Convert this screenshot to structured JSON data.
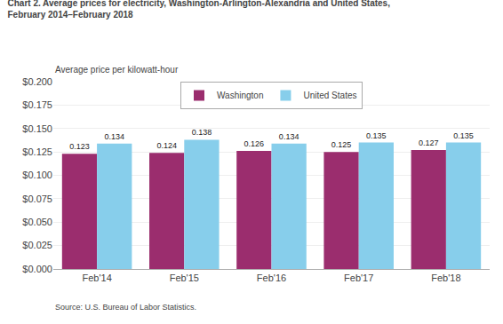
{
  "chart_data": {
    "type": "bar",
    "title": "Chart 2. Average prices for electricity, Washington-Arlington-Alexandria and United States,",
    "subtitle": "February 2014–February 2018",
    "ylabel": "Average price per kilowatt-hour",
    "source": "Source: U.S. Bureau of Labor Statistics.",
    "categories": [
      "Feb'14",
      "Feb'15",
      "Feb'16",
      "Feb'17",
      "Feb'18"
    ],
    "series": [
      {
        "name": "Washington",
        "color": "#9B2D6E",
        "values": [
          0.123,
          0.124,
          0.126,
          0.125,
          0.127
        ]
      },
      {
        "name": "United States",
        "color": "#87CEEB",
        "values": [
          0.134,
          0.138,
          0.134,
          0.135,
          0.135
        ]
      }
    ],
    "ylim": [
      0,
      0.2
    ],
    "yticks": [
      {
        "value": 0,
        "label": "$0.000"
      },
      {
        "value": 0.025,
        "label": "$0.025"
      },
      {
        "value": 0.05,
        "label": "$0.050"
      },
      {
        "value": 0.075,
        "label": "$0.075"
      },
      {
        "value": 0.1,
        "label": "$0.100"
      },
      {
        "value": 0.125,
        "label": "$0.125"
      },
      {
        "value": 0.15,
        "label": "$0.150"
      },
      {
        "value": 0.175,
        "label": "$0.175"
      },
      {
        "value": 0.2,
        "label": "$0.200"
      }
    ],
    "grid": true,
    "legend": "top",
    "data_labels": true
  }
}
